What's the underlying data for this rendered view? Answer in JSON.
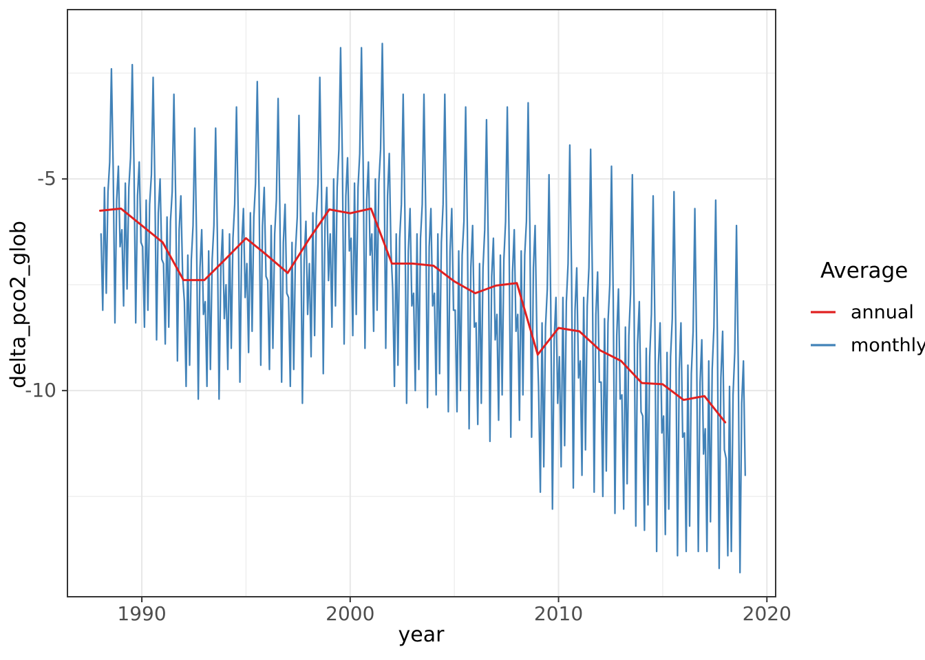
{
  "chart_data": {
    "type": "line",
    "title": "",
    "xlabel": "year",
    "ylabel": "delta_pco2_glob",
    "grid": "major and minor, light gray on white panel, black panel border",
    "x_domain": [
      1986.43,
      2020.42
    ],
    "y_domain": [
      -14.87,
      -1.0
    ],
    "x_ticks": [
      {
        "label": "1990",
        "value": 1990
      },
      {
        "label": "2000",
        "value": 2000
      },
      {
        "label": "2010",
        "value": 2010
      },
      {
        "label": "2020",
        "value": 2020
      }
    ],
    "x_minor_ticks": [
      1995,
      2005,
      2015
    ],
    "y_ticks": [
      {
        "label": "-5",
        "value": -5
      },
      {
        "label": "-10",
        "value": -10
      }
    ],
    "y_minor_ticks": [
      -2.5,
      -7.5,
      -12.5
    ],
    "legend": {
      "title": "Average",
      "position": "right",
      "entries": [
        {
          "label": "annual",
          "color": "#E02020"
        },
        {
          "label": "monthly",
          "color": "#4182B8"
        }
      ]
    },
    "series": [
      {
        "name": "monthly",
        "color": "#4182B8",
        "stroke_width": 2.3,
        "start_year": 1988,
        "points_per_year": 12,
        "values_by_year": [
          [
            -6.3,
            -8.1,
            -5.2,
            -7.7,
            -5.3,
            -4.6,
            -2.4,
            -4.8,
            -8.4,
            -5.5,
            -4.7,
            -6.6
          ],
          [
            -6.2,
            -8.0,
            -5.1,
            -7.6,
            -5.2,
            -4.5,
            -2.3,
            -4.7,
            -8.4,
            -5.4,
            -4.6,
            -6.5
          ],
          [
            -6.6,
            -8.5,
            -5.5,
            -8.1,
            -5.6,
            -4.9,
            -2.6,
            -5.1,
            -8.8,
            -5.8,
            -5.0,
            -6.9
          ],
          [
            -7.0,
            -8.9,
            -5.9,
            -8.5,
            -6.0,
            -5.3,
            -3.0,
            -5.5,
            -9.3,
            -6.2,
            -5.4,
            -7.3
          ],
          [
            -7.9,
            -9.9,
            -6.8,
            -9.4,
            -6.9,
            -6.1,
            -3.8,
            -6.3,
            -10.2,
            -7.1,
            -6.2,
            -8.2
          ],
          [
            -7.9,
            -9.9,
            -6.7,
            -9.5,
            -6.9,
            -6.1,
            -3.8,
            -6.3,
            -10.2,
            -7.1,
            -6.2,
            -8.3
          ],
          [
            -7.5,
            -9.5,
            -6.3,
            -9.0,
            -6.4,
            -5.6,
            -3.3,
            -5.8,
            -9.8,
            -6.6,
            -5.7,
            -7.8
          ],
          [
            -7.0,
            -9.1,
            -5.8,
            -8.6,
            -5.9,
            -5.1,
            -2.7,
            -5.3,
            -9.4,
            -6.1,
            -5.2,
            -7.3
          ],
          [
            -7.4,
            -9.5,
            -6.1,
            -9.0,
            -6.3,
            -5.5,
            -3.1,
            -5.7,
            -9.8,
            -6.5,
            -5.6,
            -7.7
          ],
          [
            -7.8,
            -9.9,
            -6.5,
            -9.5,
            -6.7,
            -5.9,
            -3.5,
            -6.1,
            -10.3,
            -6.9,
            -6.0,
            -8.2
          ],
          [
            -7.0,
            -9.2,
            -5.8,
            -8.7,
            -5.9,
            -5.1,
            -2.6,
            -5.3,
            -9.6,
            -6.1,
            -5.2,
            -7.4
          ],
          [
            -6.3,
            -8.5,
            -5.0,
            -8.0,
            -5.2,
            -4.3,
            -1.9,
            -4.6,
            -8.9,
            -5.4,
            -4.5,
            -6.7
          ],
          [
            -6.4,
            -8.7,
            -5.1,
            -8.2,
            -5.2,
            -4.4,
            -1.9,
            -4.7,
            -9.0,
            -5.5,
            -4.6,
            -6.8
          ],
          [
            -6.3,
            -8.6,
            -5.0,
            -8.1,
            -5.1,
            -4.3,
            -1.8,
            -4.5,
            -9.0,
            -5.4,
            -4.4,
            -6.7
          ],
          [
            -7.6,
            -9.9,
            -6.3,
            -9.4,
            -6.4,
            -5.6,
            -3.0,
            -5.8,
            -10.3,
            -6.7,
            -5.7,
            -8.0
          ],
          [
            -7.7,
            -10.0,
            -6.3,
            -9.5,
            -6.4,
            -5.6,
            -3.0,
            -5.8,
            -10.4,
            -6.6,
            -5.7,
            -8.0
          ],
          [
            -7.7,
            -10.1,
            -6.3,
            -9.6,
            -6.5,
            -5.6,
            -3.0,
            -5.9,
            -10.5,
            -6.7,
            -5.7,
            -8.1
          ],
          [
            -8.1,
            -10.5,
            -6.7,
            -10.0,
            -6.8,
            -6.0,
            -3.3,
            -6.2,
            -10.9,
            -7.1,
            -6.1,
            -8.5
          ],
          [
            -8.4,
            -10.8,
            -7.0,
            -10.3,
            -7.1,
            -6.2,
            -3.6,
            -6.5,
            -11.2,
            -7.3,
            -6.4,
            -8.8
          ],
          [
            -8.2,
            -10.7,
            -6.8,
            -10.1,
            -6.9,
            -6.0,
            -3.3,
            -6.3,
            -11.1,
            -7.2,
            -6.2,
            -8.6
          ],
          [
            -8.2,
            -10.7,
            -6.7,
            -10.1,
            -6.8,
            -6.0,
            -3.2,
            -6.2,
            -11.1,
            -7.1,
            -6.1,
            -8.6
          ],
          [
            -9.9,
            -12.4,
            -8.4,
            -11.8,
            -8.5,
            -7.6,
            -4.9,
            -7.9,
            -12.8,
            -8.8,
            -7.8,
            -10.3
          ],
          [
            -9.2,
            -11.8,
            -7.8,
            -11.3,
            -7.9,
            -7.0,
            -4.2,
            -7.3,
            -12.3,
            -8.1,
            -7.1,
            -9.7
          ],
          [
            -9.3,
            -12.0,
            -7.8,
            -11.4,
            -8.0,
            -7.1,
            -4.3,
            -7.3,
            -12.4,
            -8.2,
            -7.2,
            -9.8
          ],
          [
            -9.8,
            -12.5,
            -8.3,
            -11.9,
            -8.4,
            -7.5,
            -4.7,
            -7.8,
            -12.9,
            -8.7,
            -7.6,
            -10.2
          ],
          [
            -10.1,
            -12.8,
            -8.5,
            -12.2,
            -8.7,
            -7.7,
            -4.9,
            -8.0,
            -13.2,
            -8.9,
            -7.9,
            -10.5
          ],
          [
            -10.6,
            -13.3,
            -9.0,
            -12.7,
            -9.2,
            -8.2,
            -5.4,
            -8.5,
            -13.8,
            -9.4,
            -8.4,
            -11.0
          ],
          [
            -10.6,
            -13.4,
            -9.1,
            -12.8,
            -9.2,
            -8.3,
            -5.3,
            -8.5,
            -13.9,
            -9.5,
            -8.4,
            -11.1
          ],
          [
            -11.0,
            -13.8,
            -9.4,
            -13.2,
            -9.6,
            -8.6,
            -5.7,
            -8.9,
            -13.8,
            -9.8,
            -8.8,
            -11.5
          ],
          [
            -10.9,
            -13.8,
            -9.3,
            -13.1,
            -9.5,
            -8.5,
            -5.5,
            -8.8,
            -14.2,
            -9.7,
            -8.6,
            -11.4
          ],
          [
            -11.6,
            -13.9,
            -9.9,
            -13.8,
            -10.1,
            -9.1,
            -6.1,
            -9.4,
            -14.3,
            -10.3,
            -9.3,
            -12.0
          ]
        ]
      },
      {
        "name": "annual",
        "color": "#E02020",
        "stroke_width": 3,
        "years": [
          1988,
          1989,
          1990,
          1991,
          1992,
          1993,
          1994,
          1995,
          1996,
          1997,
          1998,
          1999,
          2000,
          2001,
          2002,
          2003,
          2004,
          2005,
          2006,
          2007,
          2008,
          2009,
          2010,
          2011,
          2012,
          2013,
          2014,
          2015,
          2016,
          2017,
          2018
        ],
        "values": [
          -5.75,
          -5.7,
          -6.1,
          -6.5,
          -7.39,
          -7.39,
          -6.9,
          -6.4,
          -6.8,
          -7.22,
          -6.44,
          -5.72,
          -5.81,
          -5.7,
          -7.0,
          -7.0,
          -7.05,
          -7.42,
          -7.7,
          -7.52,
          -7.46,
          -9.15,
          -8.52,
          -8.6,
          -9.05,
          -9.3,
          -9.82,
          -9.85,
          -10.22,
          -10.13,
          -10.75
        ]
      }
    ]
  }
}
